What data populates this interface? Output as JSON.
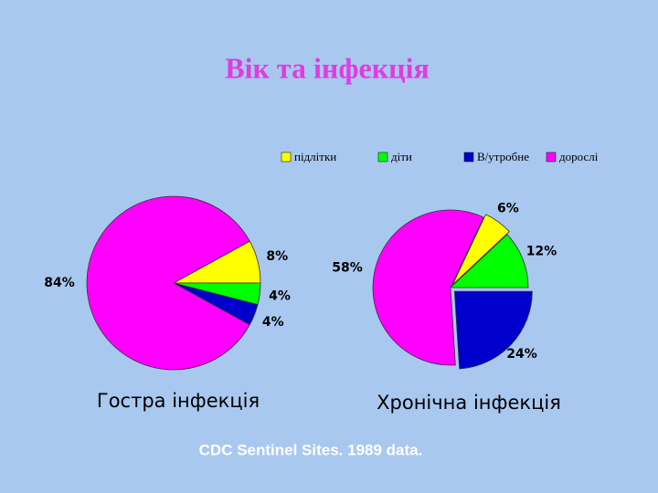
{
  "title": "Вік та інфекція",
  "source": "CDC Sentinel Sites.  1989 data.",
  "chart_data": [
    {
      "type": "pie",
      "title": "Гостра інфекція",
      "categories": [
        "підлітки",
        "діти",
        "В/утробне",
        "дорослі"
      ],
      "values": [
        8,
        4,
        4,
        84
      ],
      "value_labels": [
        "8%",
        "4%",
        "4%",
        "84%"
      ],
      "colors": [
        "#ffff00",
        "#00ff00",
        "#0000cc",
        "#ff00ff"
      ]
    },
    {
      "type": "pie",
      "title": "Хронічна інфекція",
      "categories": [
        "підлітки",
        "діти",
        "В/утробне",
        "дорослі"
      ],
      "values": [
        6,
        12,
        24,
        58
      ],
      "value_labels": [
        "6%",
        "12%",
        "24%",
        "58%"
      ],
      "colors": [
        "#ffff00",
        "#00ff00",
        "#0000cc",
        "#ff00ff"
      ]
    }
  ]
}
